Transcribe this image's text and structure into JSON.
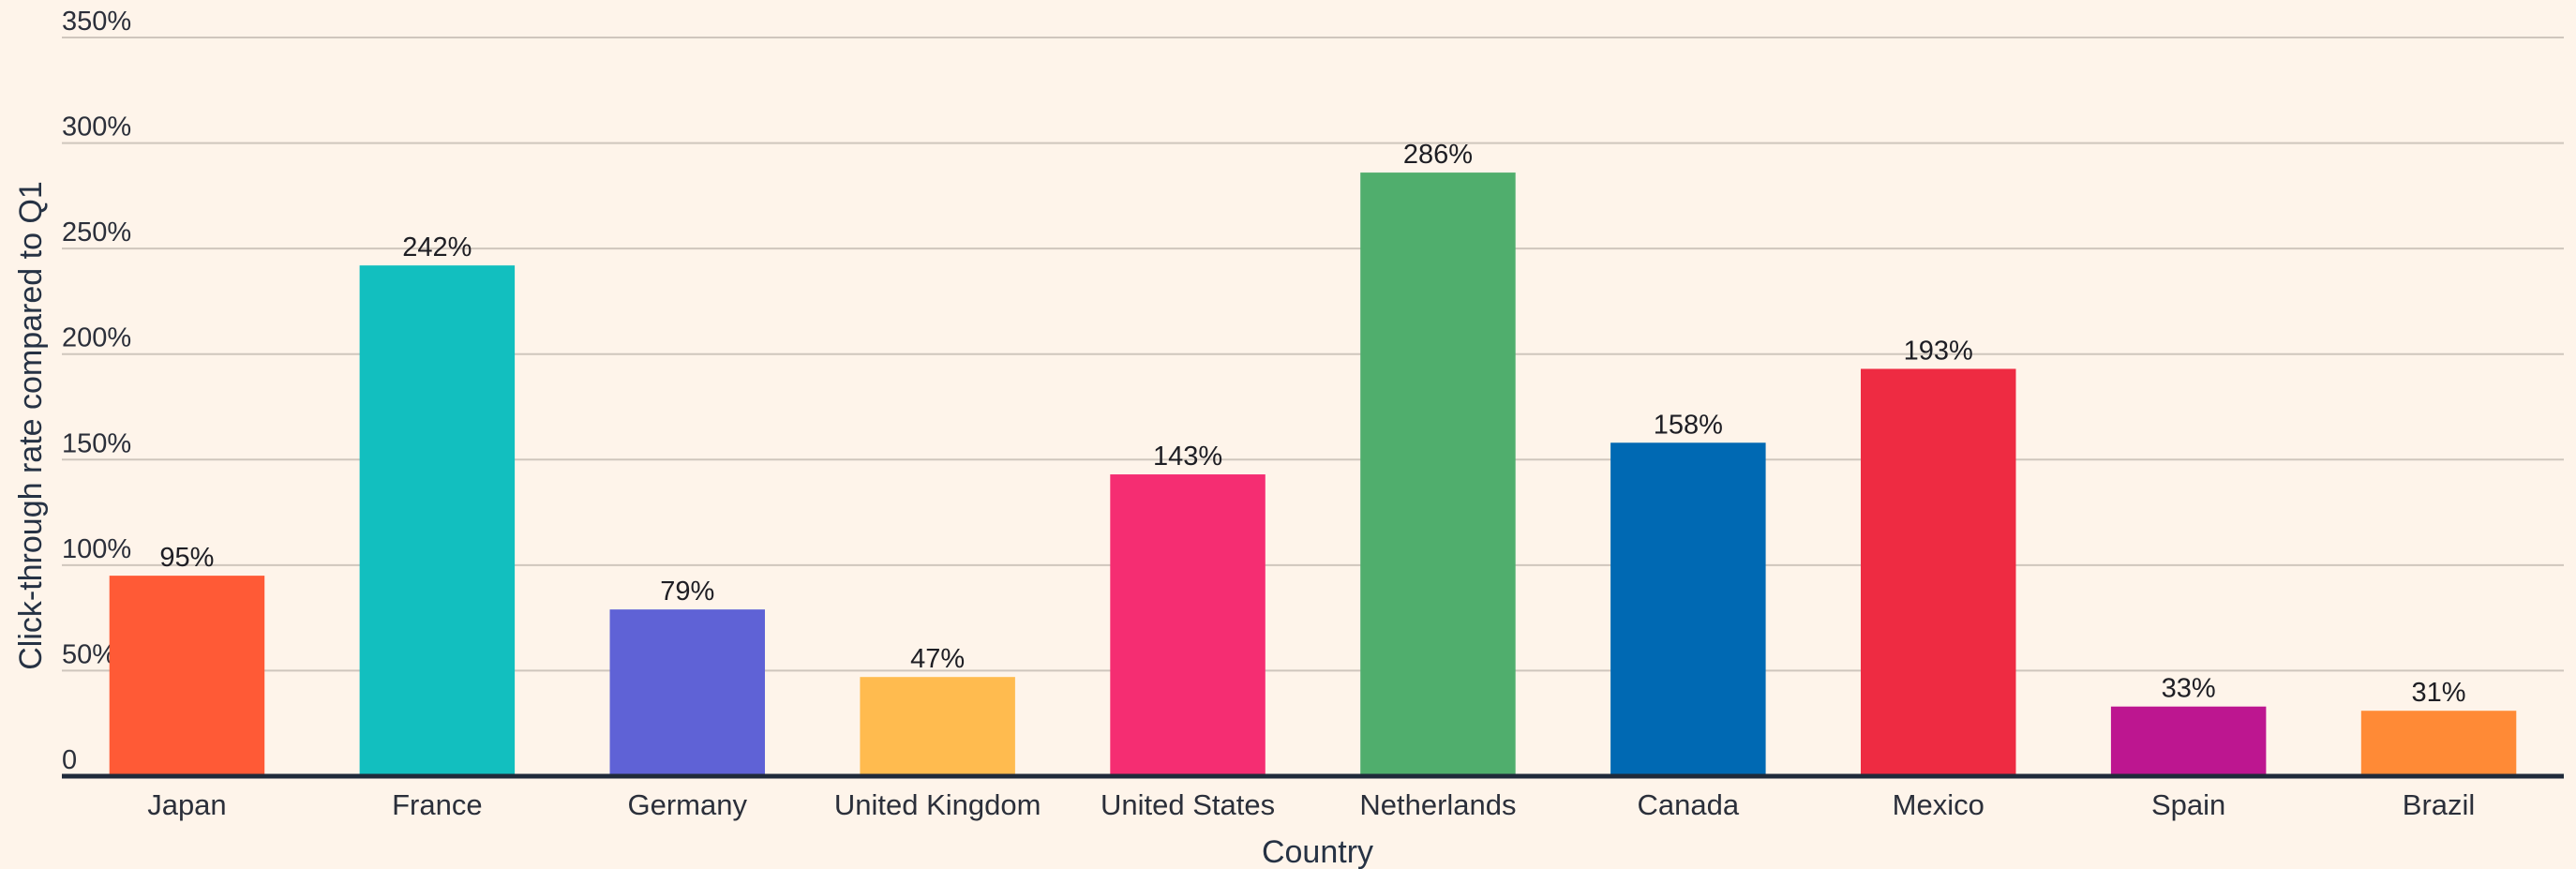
{
  "chart_data": {
    "type": "bar",
    "categories": [
      "Japan",
      "France",
      "Germany",
      "United Kingdom",
      "United States",
      "Netherlands",
      "Canada",
      "Mexico",
      "Spain",
      "Brazil"
    ],
    "values": [
      95,
      242,
      79,
      47,
      143,
      286,
      158,
      193,
      33,
      31
    ],
    "data_labels": [
      "95%",
      "242%",
      "79%",
      "47%",
      "143%",
      "286%",
      "158%",
      "193%",
      "33%",
      "31%"
    ],
    "colors": [
      "#ff5a36",
      "#12bfbf",
      "#5f62d6",
      "#ffbb4f",
      "#f52d72",
      "#50ae6d",
      "#0069b3",
      "#ee2b42",
      "#bd1690",
      "#ff8a36"
    ],
    "xlabel": "Country",
    "ylabel": "Click-through rate compared to Q1",
    "ylim": [
      0,
      350
    ],
    "yticks": [
      0,
      50,
      100,
      150,
      200,
      250,
      300,
      350
    ],
    "ytick_labels": [
      "0",
      "50%",
      "100%",
      "150%",
      "200%",
      "250%",
      "300%",
      "350%"
    ],
    "grid": true,
    "legend": "none"
  }
}
